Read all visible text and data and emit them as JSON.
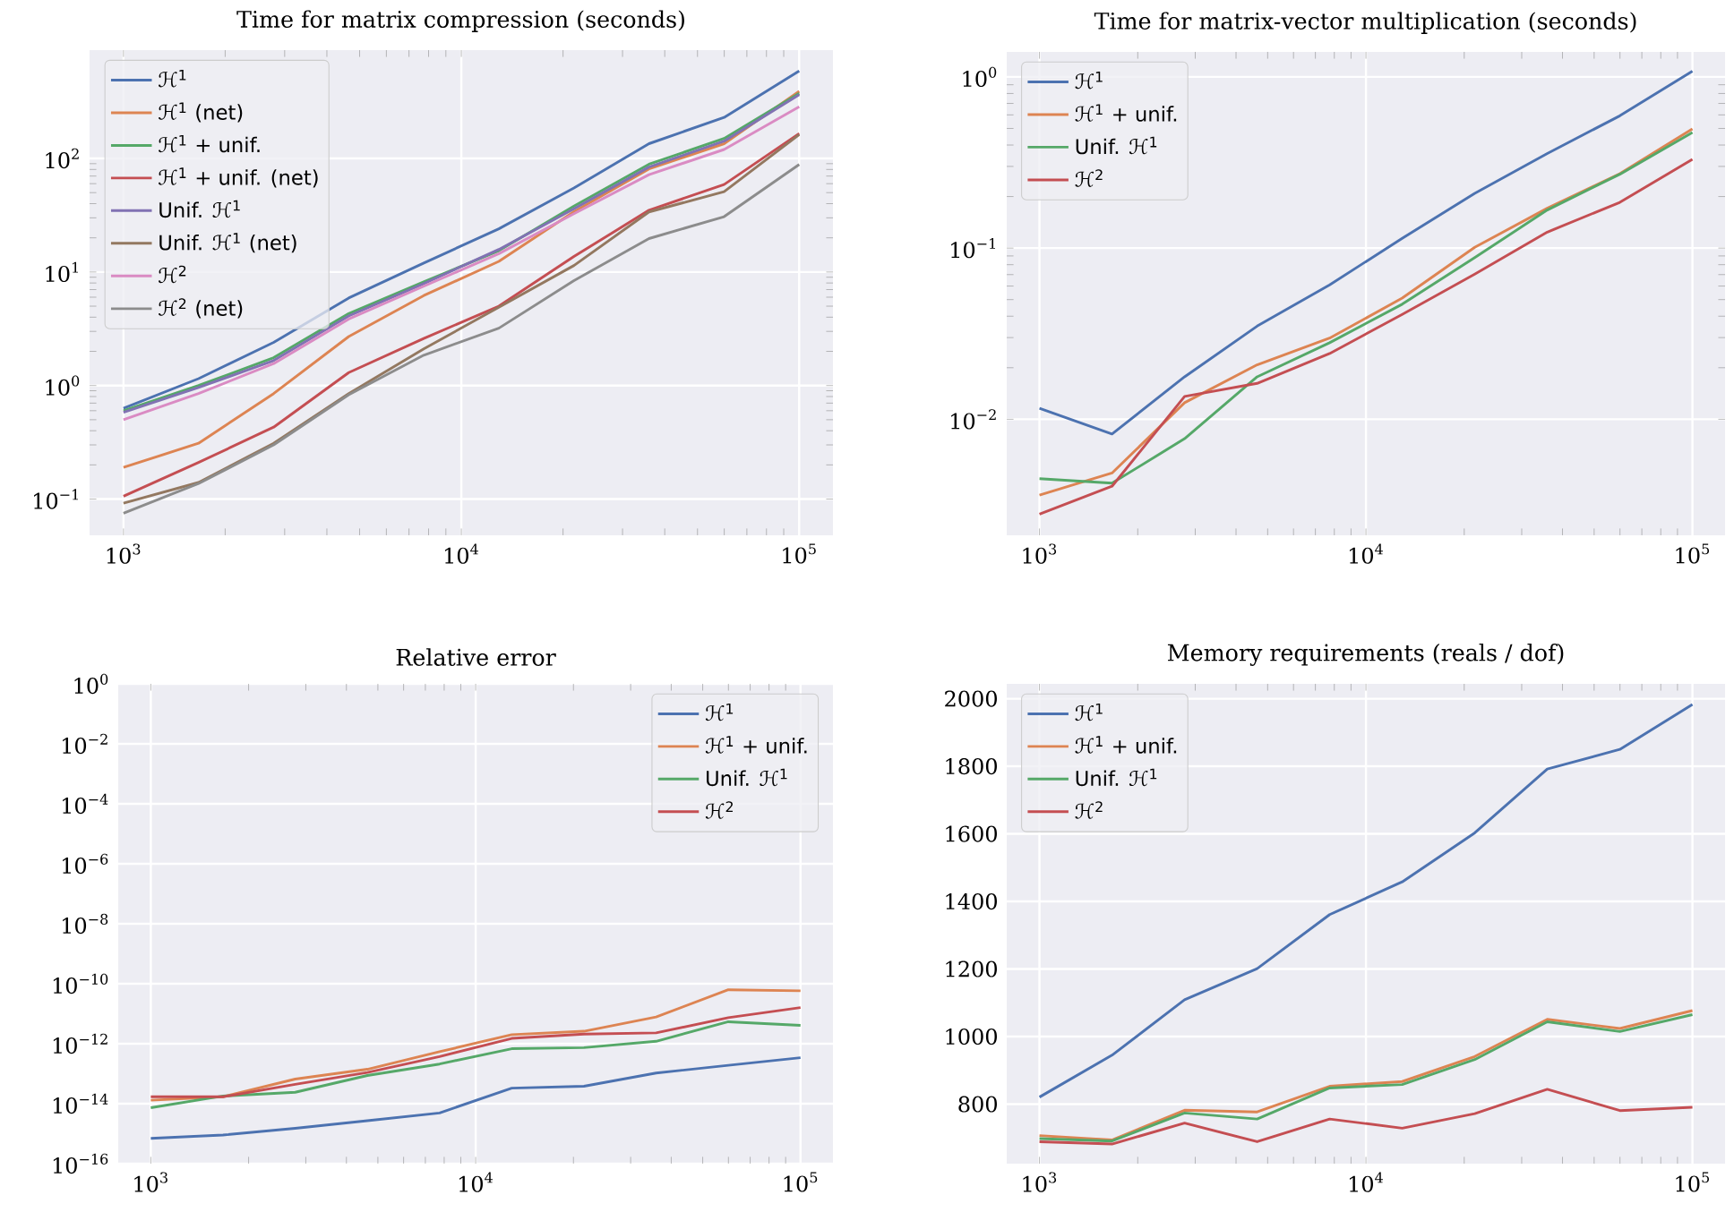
{
  "chart_data": [
    {
      "type": "line",
      "title": "Time for matrix compression (seconds)",
      "log": "xy",
      "grid": true,
      "legend": "top left",
      "x": [
        1000,
        1668,
        2783,
        4642,
        7743,
        12915,
        21544,
        35938,
        59948,
        100000
      ],
      "xlim": [
        794,
        125900
      ],
      "ylim": [
        0.048,
        900
      ],
      "xticks": [
        {
          "value": 1000,
          "label": "10$^{3}$"
        },
        {
          "value": 10000,
          "label": "10$^{4}$"
        },
        {
          "value": 100000,
          "label": "10$^{5}$"
        }
      ],
      "yticks": [
        {
          "value": 0.1,
          "label": "10$^{−1}$"
        },
        {
          "value": 1,
          "label": "10$^{0}$"
        },
        {
          "value": 10,
          "label": "10$^{1}$"
        },
        {
          "value": 100,
          "label": "10$^{2}$"
        }
      ],
      "series": [
        {
          "name": "ℋ$^{1}$",
          "color": "#4c72b0",
          "values": [
            0.63,
            1.15,
            2.4,
            5.9,
            12,
            24,
            55,
            135,
            230,
            590
          ]
        },
        {
          "name": "ℋ$^{1}$ (net)",
          "color": "#dd8452",
          "values": [
            0.19,
            0.31,
            0.85,
            2.7,
            6.2,
            12.4,
            34,
            81,
            135,
            390
          ]
        },
        {
          "name": "ℋ$^{1}$ + unif.",
          "color": "#55a868",
          "values": [
            0.6,
            1.0,
            1.76,
            4.3,
            8.2,
            15.4,
            38,
            89,
            150,
            375
          ]
        },
        {
          "name": "ℋ$^{1}$ + unif. (net)",
          "color": "#c44e52",
          "values": [
            0.106,
            0.21,
            0.43,
            1.3,
            2.6,
            5.0,
            13.7,
            35,
            59,
            166
          ]
        },
        {
          "name": "Unif. ℋ$^{1}$",
          "color": "#8172b3",
          "values": [
            0.58,
            0.96,
            1.66,
            4.1,
            7.9,
            15.8,
            36,
            84,
            142,
            365
          ]
        },
        {
          "name": "Unif. ℋ$^{1}$ (net)",
          "color": "#937860",
          "values": [
            0.092,
            0.14,
            0.31,
            0.85,
            2.1,
            4.9,
            11.4,
            33.8,
            51,
            162
          ]
        },
        {
          "name": "ℋ$^{2}$",
          "color": "#da8bc3",
          "values": [
            0.5,
            0.85,
            1.56,
            3.85,
            7.5,
            14.5,
            32.6,
            72,
            120,
            285
          ]
        },
        {
          "name": "ℋ$^{2}$ (net)",
          "color": "#8c8c8c",
          "values": [
            0.075,
            0.137,
            0.3,
            0.83,
            1.85,
            3.2,
            8.4,
            19.7,
            30.7,
            88.6
          ]
        }
      ]
    },
    {
      "type": "line",
      "title": "Time for matrix-vector multiplication (seconds)",
      "log": "xy",
      "grid": true,
      "legend": "top left",
      "x": [
        1000,
        1668,
        2783,
        4642,
        7743,
        12915,
        21544,
        35938,
        59948,
        100000
      ],
      "xlim": [
        794,
        125900
      ],
      "ylim": [
        0.0021,
        1.4
      ],
      "xticks": [
        {
          "value": 1000,
          "label": "10$^{3}$"
        },
        {
          "value": 10000,
          "label": "10$^{4}$"
        },
        {
          "value": 100000,
          "label": "10$^{5}$"
        }
      ],
      "yticks": [
        {
          "value": 0.01,
          "label": "10$^{−2}$"
        },
        {
          "value": 0.1,
          "label": "10$^{−1}$"
        },
        {
          "value": 1,
          "label": "10$^{0}$"
        }
      ],
      "series": [
        {
          "name": "ℋ$^{1}$",
          "color": "#4c72b0",
          "values": [
            0.0116,
            0.0082,
            0.0177,
            0.035,
            0.061,
            0.114,
            0.209,
            0.357,
            0.593,
            1.08
          ]
        },
        {
          "name": "ℋ$^{1}$ + unif.",
          "color": "#dd8452",
          "values": [
            0.0036,
            0.00485,
            0.0125,
            0.0208,
            0.0298,
            0.051,
            0.101,
            0.171,
            0.272,
            0.497
          ]
        },
        {
          "name": "Unif. ℋ$^{1}$",
          "color": "#55a868",
          "values": [
            0.0045,
            0.00423,
            0.0077,
            0.0177,
            0.028,
            0.047,
            0.088,
            0.167,
            0.27,
            0.473
          ]
        },
        {
          "name": "ℋ$^{2}$",
          "color": "#c44e52",
          "values": [
            0.00279,
            0.00406,
            0.0136,
            0.0162,
            0.0242,
            0.041,
            0.0705,
            0.124,
            0.185,
            0.33
          ]
        }
      ]
    },
    {
      "type": "line",
      "title": "Relative error",
      "log": "xy",
      "grid": true,
      "legend": "top right",
      "x": [
        1000,
        1668,
        2783,
        4642,
        7743,
        12915,
        21544,
        35938,
        59948,
        100000
      ],
      "xlim": [
        794,
        125900
      ],
      "ylim": [
        1e-16,
        1
      ],
      "xticks": [
        {
          "value": 1000,
          "label": "10$^{3}$"
        },
        {
          "value": 10000,
          "label": "10$^{4}$"
        },
        {
          "value": 100000,
          "label": "10$^{5}$"
        }
      ],
      "yticks": [
        {
          "value": 1e-16,
          "label": "10$^{−16}$"
        },
        {
          "value": 1e-14,
          "label": "10$^{−14}$"
        },
        {
          "value": 1e-12,
          "label": "10$^{−12}$"
        },
        {
          "value": 1e-10,
          "label": "10$^{−10}$"
        },
        {
          "value": 1e-08,
          "label": "10$^{−8}$"
        },
        {
          "value": 1e-06,
          "label": "10$^{−6}$"
        },
        {
          "value": 0.0001,
          "label": "10$^{−4}$"
        },
        {
          "value": 0.01,
          "label": "10$^{−2}$"
        },
        {
          "value": 1,
          "label": "10$^{0}$"
        }
      ],
      "series": [
        {
          "name": "ℋ$^{1}$",
          "color": "#4c72b0",
          "values": [
            7e-16,
            9e-16,
            1.5e-15,
            2.7e-15,
            4.9e-15,
            3.3e-14,
            3.8e-14,
            1.05e-13,
            1.9e-13,
            3.4e-13
          ]
        },
        {
          "name": "ℋ$^{1}$ + unif.",
          "color": "#dd8452",
          "values": [
            1.3e-14,
            1.7e-14,
            6.6e-14,
            1.4e-13,
            5.4e-13,
            2e-12,
            2.6e-12,
            7.8e-12,
            6.3e-11,
            5.8e-11
          ]
        },
        {
          "name": "Unif. ℋ$^{1}$",
          "color": "#55a868",
          "values": [
            7.3e-15,
            1.8e-14,
            2.4e-14,
            8.7e-14,
            2.1e-13,
            6.8e-13,
            7.4e-13,
            1.2e-12,
            5.4e-12,
            4.1e-12
          ]
        },
        {
          "name": "ℋ$^{2}$",
          "color": "#c44e52",
          "values": [
            1.7e-14,
            1.7e-14,
            4.4e-14,
            1.1e-13,
            3.7e-13,
            1.5e-12,
            2.1e-12,
            2.3e-12,
            7.4e-12,
            1.6e-11
          ]
        }
      ]
    },
    {
      "type": "line",
      "title": "Memory requirements (reals / dof)",
      "log": "x",
      "grid": true,
      "legend": "top left",
      "x": [
        1000,
        1668,
        2783,
        4642,
        7743,
        12915,
        21544,
        35938,
        59948,
        100000
      ],
      "xlim": [
        794,
        125900
      ],
      "ylim": [
        624,
        2044
      ],
      "xticks": [
        {
          "value": 1000,
          "label": "10$^{3}$"
        },
        {
          "value": 10000,
          "label": "10$^{4}$"
        },
        {
          "value": 100000,
          "label": "10$^{5}$"
        }
      ],
      "yticks": [
        800,
        1000,
        1200,
        1400,
        1600,
        1800,
        2000
      ],
      "series": [
        {
          "name": "ℋ$^{1}$",
          "color": "#4c72b0",
          "values": [
            821,
            945,
            1109,
            1201,
            1361,
            1458,
            1603,
            1792,
            1850,
            1983
          ]
        },
        {
          "name": "ℋ$^{1}$ + unif.",
          "color": "#dd8452",
          "values": [
            707,
            694,
            782,
            777,
            853,
            867,
            941,
            1051,
            1024,
            1077
          ]
        },
        {
          "name": "Unif. ℋ$^{1}$",
          "color": "#55a868",
          "values": [
            698,
            691,
            774,
            756,
            848,
            858,
            932,
            1044,
            1015,
            1065
          ]
        },
        {
          "name": "ℋ$^{2}$",
          "color": "#c44e52",
          "values": [
            689,
            682,
            744,
            689,
            756,
            729,
            772,
            844,
            781,
            791
          ]
        }
      ]
    }
  ]
}
